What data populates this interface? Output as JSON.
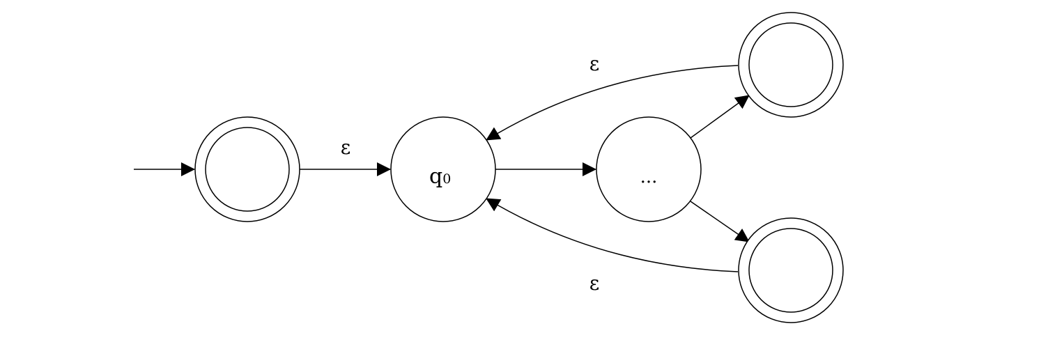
{
  "diagram": {
    "type": "nfa-kleene-star",
    "states": {
      "new_start": {
        "label": "",
        "accepting": true
      },
      "q0": {
        "label": "q",
        "subscript": "0",
        "accepting": false
      },
      "middle": {
        "label": "...",
        "accepting": false
      },
      "accept_top": {
        "label": "",
        "accepting": true
      },
      "accept_bottom": {
        "label": "",
        "accepting": true
      }
    },
    "transitions": {
      "start_arrow": {
        "from": "",
        "to": "new_start",
        "label": ""
      },
      "new_start_to_q0": {
        "from": "new_start",
        "to": "q0",
        "label": "ε"
      },
      "q0_to_middle": {
        "from": "q0",
        "to": "middle",
        "label": ""
      },
      "middle_to_accept_top": {
        "from": "middle",
        "to": "accept_top",
        "label": ""
      },
      "middle_to_accept_bottom": {
        "from": "middle",
        "to": "accept_bottom",
        "label": ""
      },
      "accept_top_to_q0": {
        "from": "accept_top",
        "to": "q0",
        "label": "ε"
      },
      "accept_bottom_to_q0": {
        "from": "accept_bottom",
        "to": "q0",
        "label": "ε"
      }
    },
    "colors": {
      "stroke": "#000000",
      "fill": "#ffffff"
    }
  }
}
